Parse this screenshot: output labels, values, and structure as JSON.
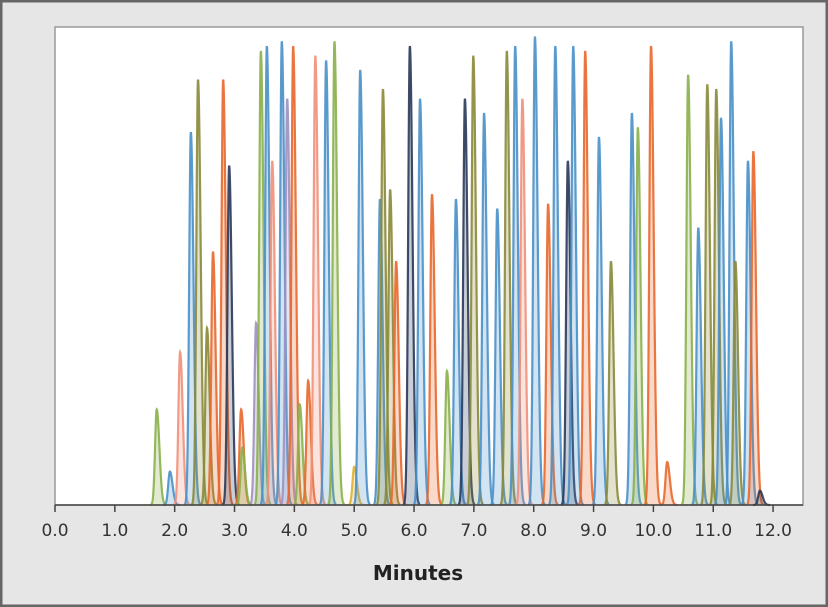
{
  "chart_data": {
    "type": "peaks",
    "x_label": "Minutes",
    "xlim": [
      0,
      12.5
    ],
    "ylim": [
      0,
      100
    ],
    "xticks": [
      {
        "value": 0,
        "label": "0.0"
      },
      {
        "value": 1,
        "label": "1.0"
      },
      {
        "value": 2,
        "label": "2.0"
      },
      {
        "value": 3,
        "label": "3.0"
      },
      {
        "value": 4,
        "label": "4.0"
      },
      {
        "value": 5,
        "label": "5.0"
      },
      {
        "value": 6,
        "label": "6.0"
      },
      {
        "value": 7,
        "label": "7.0"
      },
      {
        "value": 8,
        "label": "8.0"
      },
      {
        "value": 9,
        "label": "9.0"
      },
      {
        "value": 10,
        "label": "10.0"
      },
      {
        "value": 11,
        "label": "11.0"
      },
      {
        "value": 12,
        "label": "12.0"
      }
    ],
    "x": [
      1.7,
      1.92,
      2.09,
      2.27,
      2.39,
      2.54,
      2.64,
      2.81,
      2.91,
      3.11,
      3.13,
      3.36,
      3.44,
      3.54,
      3.63,
      3.79,
      3.88,
      3.98,
      4.09,
      4.23,
      4.35,
      4.53,
      4.67,
      5.0,
      5.1,
      5.43,
      5.48,
      5.6,
      5.7,
      5.93,
      6.1,
      6.3,
      6.55,
      6.7,
      6.85,
      6.99,
      7.17,
      7.39,
      7.55,
      7.69,
      7.81,
      8.02,
      8.24,
      8.36,
      8.57,
      8.66,
      8.86,
      9.09,
      9.29,
      9.64,
      9.74,
      9.96,
      10.23,
      10.58,
      10.75,
      10.9,
      11.05,
      11.13,
      11.3,
      11.37,
      11.58,
      11.67,
      11.78
    ],
    "values": [
      20,
      7,
      32,
      78,
      89,
      37,
      53,
      89,
      71,
      20,
      12,
      38,
      95,
      96,
      72,
      97,
      85,
      96,
      21,
      26,
      94,
      93,
      97,
      8,
      91,
      64,
      87,
      66,
      51,
      96,
      85,
      65,
      28,
      64,
      85,
      94,
      82,
      62,
      95,
      96,
      85,
      98,
      63,
      96,
      72,
      96,
      95,
      77,
      51,
      82,
      79,
      96,
      9,
      90,
      58,
      88,
      87,
      81,
      97,
      51,
      72,
      74,
      3
    ],
    "colors": [
      "#8ab04a",
      "#4a90c8",
      "#f0907a",
      "#4a90c8",
      "#8a8a3a",
      "#8a8a3a",
      "#e8682c",
      "#e8682c",
      "#2a3a5a",
      "#e8682c",
      "#8ab04a",
      "#a090c0",
      "#8ab04a",
      "#4a90c8",
      "#f0907a",
      "#4a90c8",
      "#a090c0",
      "#e8682c",
      "#8ab04a",
      "#e8682c",
      "#f0907a",
      "#4a90c8",
      "#8ab04a",
      "#e0b030",
      "#4a90c8",
      "#4a90c8",
      "#8a8a3a",
      "#8a8a3a",
      "#e8682c",
      "#2a3a5a",
      "#4a90c8",
      "#e8682c",
      "#8ab04a",
      "#4a90c8",
      "#2a3a5a",
      "#8a8a3a",
      "#4a90c8",
      "#4a90c8",
      "#8a8a3a",
      "#4a90c8",
      "#f0907a",
      "#4a90c8",
      "#e8682c",
      "#4a90c8",
      "#2a3a5a",
      "#4a90c8",
      "#e8682c",
      "#4a90c8",
      "#8a8a3a",
      "#4a90c8",
      "#8ab04a",
      "#e8682c",
      "#e8682c",
      "#8ab04a",
      "#4a90c8",
      "#8a8a3a",
      "#8a8a3a",
      "#4a90c8",
      "#4a90c8",
      "#8a8a3a",
      "#4a90c8",
      "#e8682c",
      "#2a3a5a"
    ]
  }
}
